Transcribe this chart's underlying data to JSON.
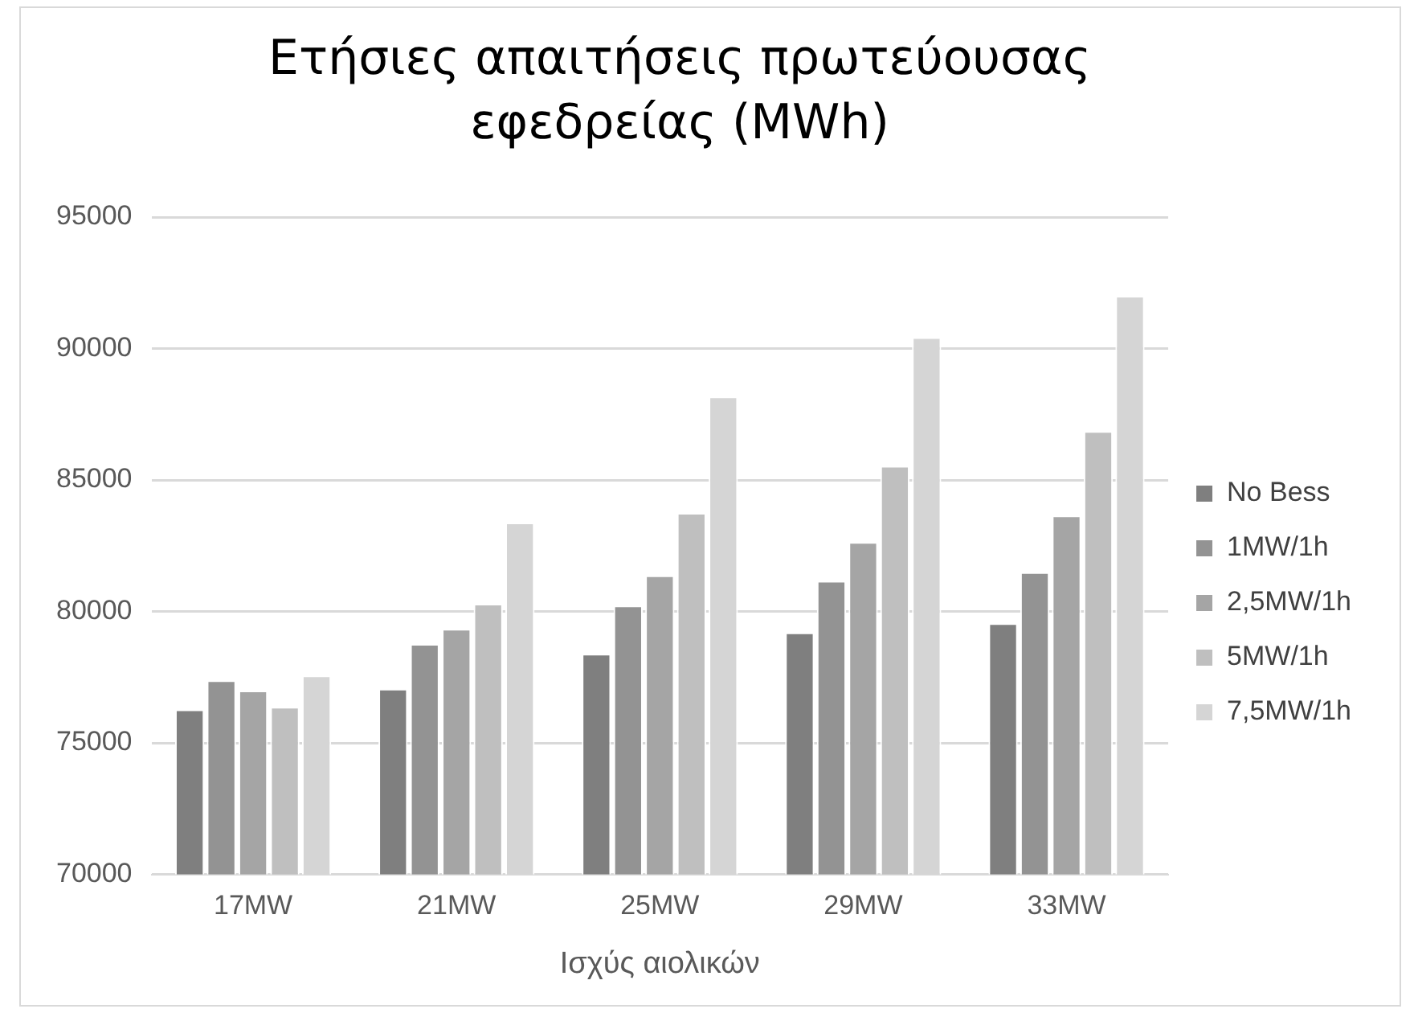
{
  "chart_data": {
    "type": "bar",
    "title": "Ετήσιες απαιτήσεις πρωτεύουσας εφεδρείας (MWh)",
    "xlabel": "Ισχύς αιολικών",
    "categories": [
      "17MW",
      "21MW",
      "25MW",
      "29MW",
      "33MW"
    ],
    "series": [
      {
        "name": "No Bess",
        "color": "#7f7f7f",
        "values": [
          76270,
          77060,
          78390,
          79200,
          79550
        ]
      },
      {
        "name": "1MW/1h",
        "color": "#939393",
        "values": [
          77380,
          78760,
          80220,
          81160,
          81490
        ]
      },
      {
        "name": "2,5MW/1h",
        "color": "#a5a5a5",
        "values": [
          76990,
          79340,
          81370,
          82640,
          83650
        ]
      },
      {
        "name": "5MW/1h",
        "color": "#bfbfbf",
        "values": [
          76370,
          80290,
          83750,
          85540,
          86860
        ]
      },
      {
        "name": "7,5MW/1h",
        "color": "#d5d5d5",
        "values": [
          77560,
          83380,
          88170,
          90430,
          92000
        ]
      }
    ],
    "ylim": [
      70000,
      95000
    ],
    "yticks": [
      70000,
      75000,
      80000,
      85000,
      90000,
      95000
    ],
    "grid": "y",
    "legend": "right"
  }
}
